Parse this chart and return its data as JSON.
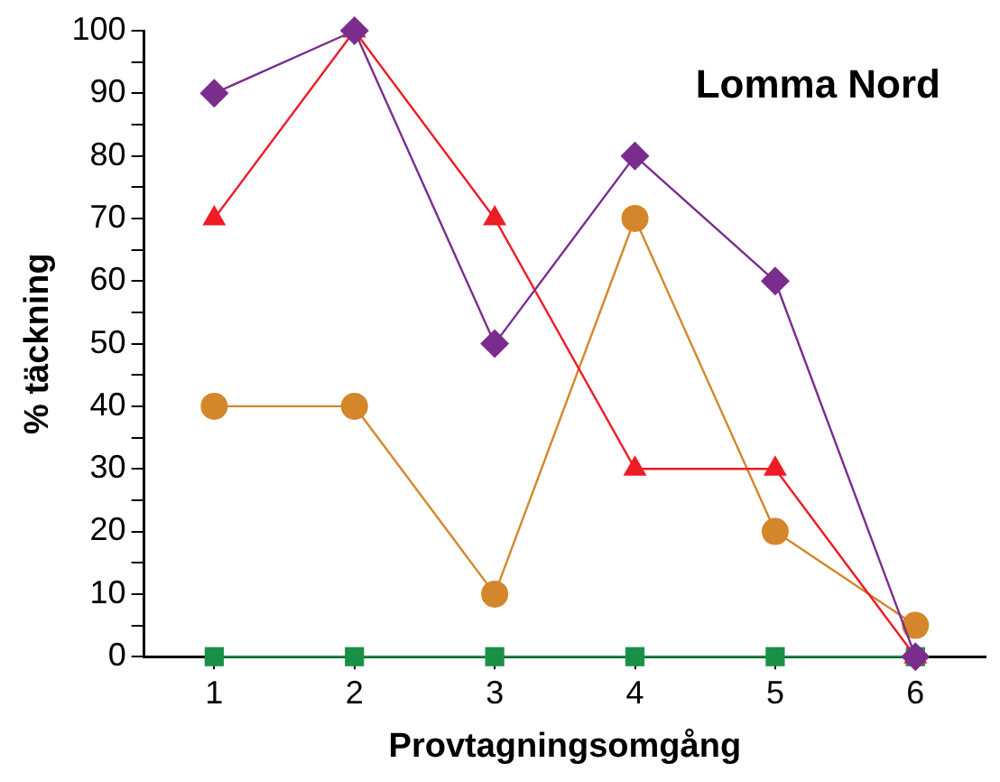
{
  "chart_data": {
    "type": "line",
    "xlabel": "Provtagningsomgång",
    "ylabel": "% täckning",
    "annotations": [
      "Lomma Nord"
    ],
    "x": [
      1,
      2,
      3,
      4,
      5,
      6
    ],
    "series": [
      {
        "color": "#7b2d8e",
        "marker": "diamond",
        "values": [
          90,
          100,
          50,
          80,
          60,
          0
        ]
      },
      {
        "color": "#ee1c25",
        "marker": "triangle",
        "values": [
          70,
          100,
          70,
          30,
          30,
          0
        ]
      },
      {
        "color": "#d4862a",
        "marker": "circle",
        "values": [
          40,
          40,
          10,
          70,
          20,
          5
        ]
      },
      {
        "color": "#1a9046",
        "marker": "square",
        "values": [
          0,
          0,
          0,
          0,
          0,
          0
        ]
      }
    ],
    "xlim": [
      0.5,
      6.5
    ],
    "xticks": [
      1,
      2,
      3,
      4,
      5,
      6
    ],
    "ylim": [
      0,
      100
    ],
    "yticks": [
      0,
      {
        "value": 5,
        "label": null
      },
      10,
      {
        "value": 15,
        "label": null
      },
      20,
      {
        "value": 25,
        "label": null
      },
      30,
      {
        "value": 35,
        "label": null
      },
      40,
      {
        "value": 45,
        "label": null
      },
      50,
      {
        "value": 55,
        "label": null
      },
      60,
      {
        "value": 65,
        "label": null
      },
      70,
      {
        "value": 75,
        "label": null
      },
      80,
      {
        "value": 85,
        "label": null
      },
      90,
      {
        "value": 95,
        "label": null
      },
      100
    ],
    "grid": false,
    "legend": false
  }
}
